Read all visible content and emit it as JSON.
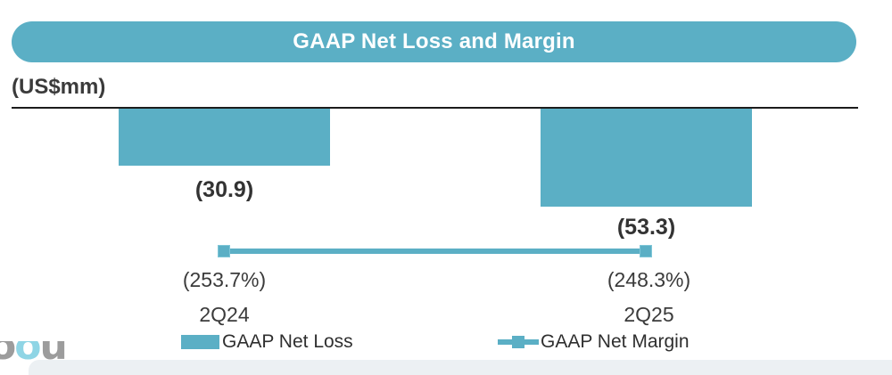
{
  "title": "GAAP Net Loss and Margin",
  "units_label": "(US$mm)",
  "chart_data": {
    "type": "combo",
    "categories": [
      "2Q24",
      "2Q25"
    ],
    "series": [
      {
        "name": "GAAP Net Loss",
        "type": "bar",
        "axis": "primary",
        "unit": "US$mm",
        "values": [
          -30.9,
          -53.3
        ],
        "data_labels": [
          "(30.9)",
          "(53.3)"
        ]
      },
      {
        "name": "GAAP Net Margin",
        "type": "line",
        "axis": "secondary",
        "unit": "%",
        "values": [
          -253.7,
          -248.3
        ],
        "data_labels": [
          "(253.7%)",
          "(248.3%)"
        ]
      }
    ],
    "ylabel": "(US$mm)",
    "baseline": 0,
    "grid": false,
    "legend_position": "bottom"
  },
  "legend": {
    "items": [
      {
        "label": "GAAP Net Loss",
        "marker": "square"
      },
      {
        "label": "GAAP Net Margin",
        "marker": "line-with-square"
      }
    ]
  },
  "logo": {
    "letters": [
      "o",
      "o",
      "u"
    ]
  },
  "colors": {
    "teal": "#5BAFC5",
    "dark": "#3B3B3B",
    "axis_line": "#1C1C1C",
    "band": "#ECF0F3",
    "logo_teal": "#8FD5E5",
    "logo_gray": "#9C9C9C",
    "title_text": "#FFFFFF"
  }
}
